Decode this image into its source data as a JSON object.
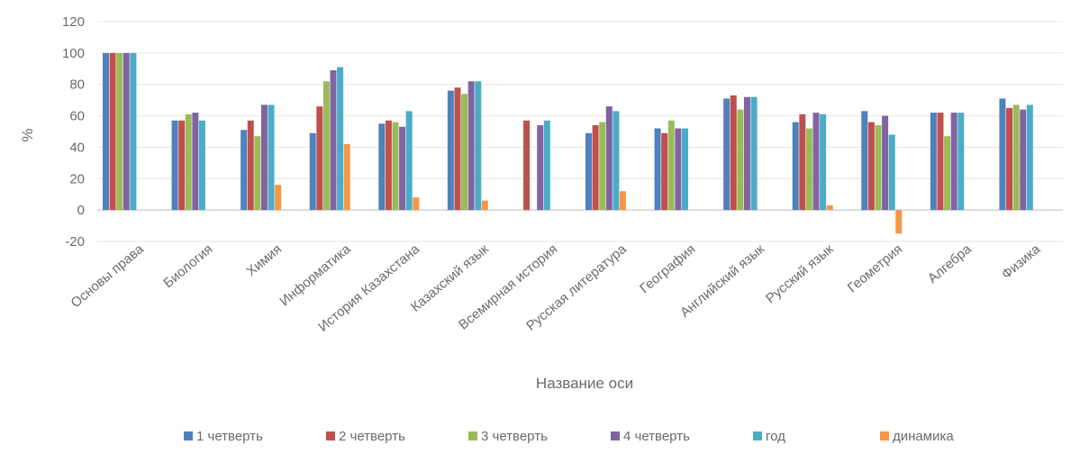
{
  "chart_data": {
    "type": "bar",
    "title": "",
    "xlabel": "Название оси",
    "ylabel": "%",
    "ylim": [
      -20,
      120
    ],
    "yticks": [
      -20,
      0,
      20,
      40,
      60,
      80,
      100,
      120
    ],
    "grid": true,
    "legend_position": "bottom",
    "categories": [
      "Основы права",
      "Биология",
      "Химия",
      "Информатика",
      "История Казахстана",
      "Казахский язык",
      "Всемирная история",
      "Русская литература",
      "География",
      "Английский язык",
      "Русский язык",
      "Геометрия",
      "Алгебра",
      "Физика"
    ],
    "series": [
      {
        "name": "1 четверть",
        "color": "#4f81bd",
        "values": [
          100,
          57,
          51,
          49,
          55,
          76,
          0,
          49,
          52,
          71,
          56,
          63,
          62,
          71
        ]
      },
      {
        "name": "2 четверть",
        "color": "#c0504d",
        "values": [
          100,
          57,
          57,
          66,
          57,
          78,
          57,
          54,
          49,
          73,
          61,
          56,
          62,
          65
        ]
      },
      {
        "name": "3 четверть",
        "color": "#9bbb59",
        "values": [
          100,
          61,
          47,
          82,
          56,
          74,
          0,
          56,
          57,
          64,
          52,
          54,
          47,
          67
        ]
      },
      {
        "name": "4 четверть",
        "color": "#8064a2",
        "values": [
          100,
          62,
          67,
          89,
          53,
          82,
          54,
          66,
          52,
          72,
          62,
          60,
          62,
          64
        ]
      },
      {
        "name": "год",
        "color": "#4bacc6",
        "values": [
          100,
          57,
          67,
          91,
          63,
          82,
          57,
          63,
          52,
          72,
          61,
          48,
          62,
          67
        ]
      },
      {
        "name": "динамика",
        "color": "#f79646",
        "values": [
          0,
          0,
          16,
          42,
          8,
          6,
          0,
          12,
          0,
          0,
          3,
          -15,
          0,
          0
        ]
      }
    ]
  }
}
